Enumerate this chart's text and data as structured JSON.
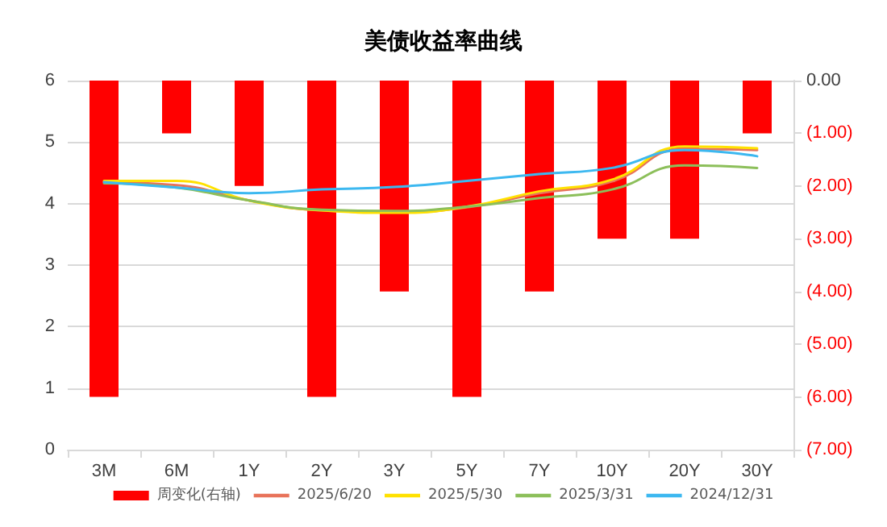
{
  "chart_data": {
    "type": "line",
    "title": "美债收益率曲线",
    "categories": [
      "3M",
      "6M",
      "1Y",
      "2Y",
      "3Y",
      "5Y",
      "7Y",
      "10Y",
      "20Y",
      "30Y"
    ],
    "series": [
      {
        "name": "周变化(右轴)",
        "type": "bar",
        "axis": "y2",
        "color": "#ff0000",
        "values": [
          -6,
          -1,
          -2,
          -6,
          -4,
          -6,
          -4,
          -3,
          -3,
          -1
        ]
      },
      {
        "name": "2025/6/20",
        "color": "#e8735a",
        "values": [
          4.35,
          4.3,
          4.05,
          3.89,
          3.86,
          3.94,
          4.17,
          4.36,
          4.89,
          4.87
        ]
      },
      {
        "name": "2025/5/30",
        "color": "#ffe100",
        "values": [
          4.37,
          4.37,
          4.05,
          3.89,
          3.85,
          3.95,
          4.2,
          4.39,
          4.93,
          4.9
        ]
      },
      {
        "name": "2025/3/31",
        "color": "#8cbf5a",
        "values": [
          4.33,
          4.26,
          4.05,
          3.9,
          3.88,
          3.95,
          4.09,
          4.23,
          4.62,
          4.58
        ]
      },
      {
        "name": "2024/12/31",
        "color": "#3cb8f0",
        "values": [
          4.35,
          4.26,
          4.17,
          4.23,
          4.27,
          4.37,
          4.48,
          4.58,
          4.87,
          4.77
        ]
      }
    ],
    "ylim": [
      0,
      6
    ],
    "yticks": [
      0,
      1,
      2,
      3,
      4,
      5,
      6
    ],
    "y2lim": [
      -7,
      0
    ],
    "y2ticks": [
      {
        "value": 0,
        "label": "0.00"
      },
      {
        "value": -1,
        "label": "(1.00)"
      },
      {
        "value": -2,
        "label": "(2.00)"
      },
      {
        "value": -3,
        "label": "(3.00)"
      },
      {
        "value": -4,
        "label": "(4.00)"
      },
      {
        "value": -5,
        "label": "(5.00)"
      },
      {
        "value": -6,
        "label": "(6.00)"
      },
      {
        "value": -7,
        "label": "(7.00)"
      }
    ],
    "grid": "y",
    "legend": "bottom",
    "marker": "none",
    "line_style": "solid"
  }
}
